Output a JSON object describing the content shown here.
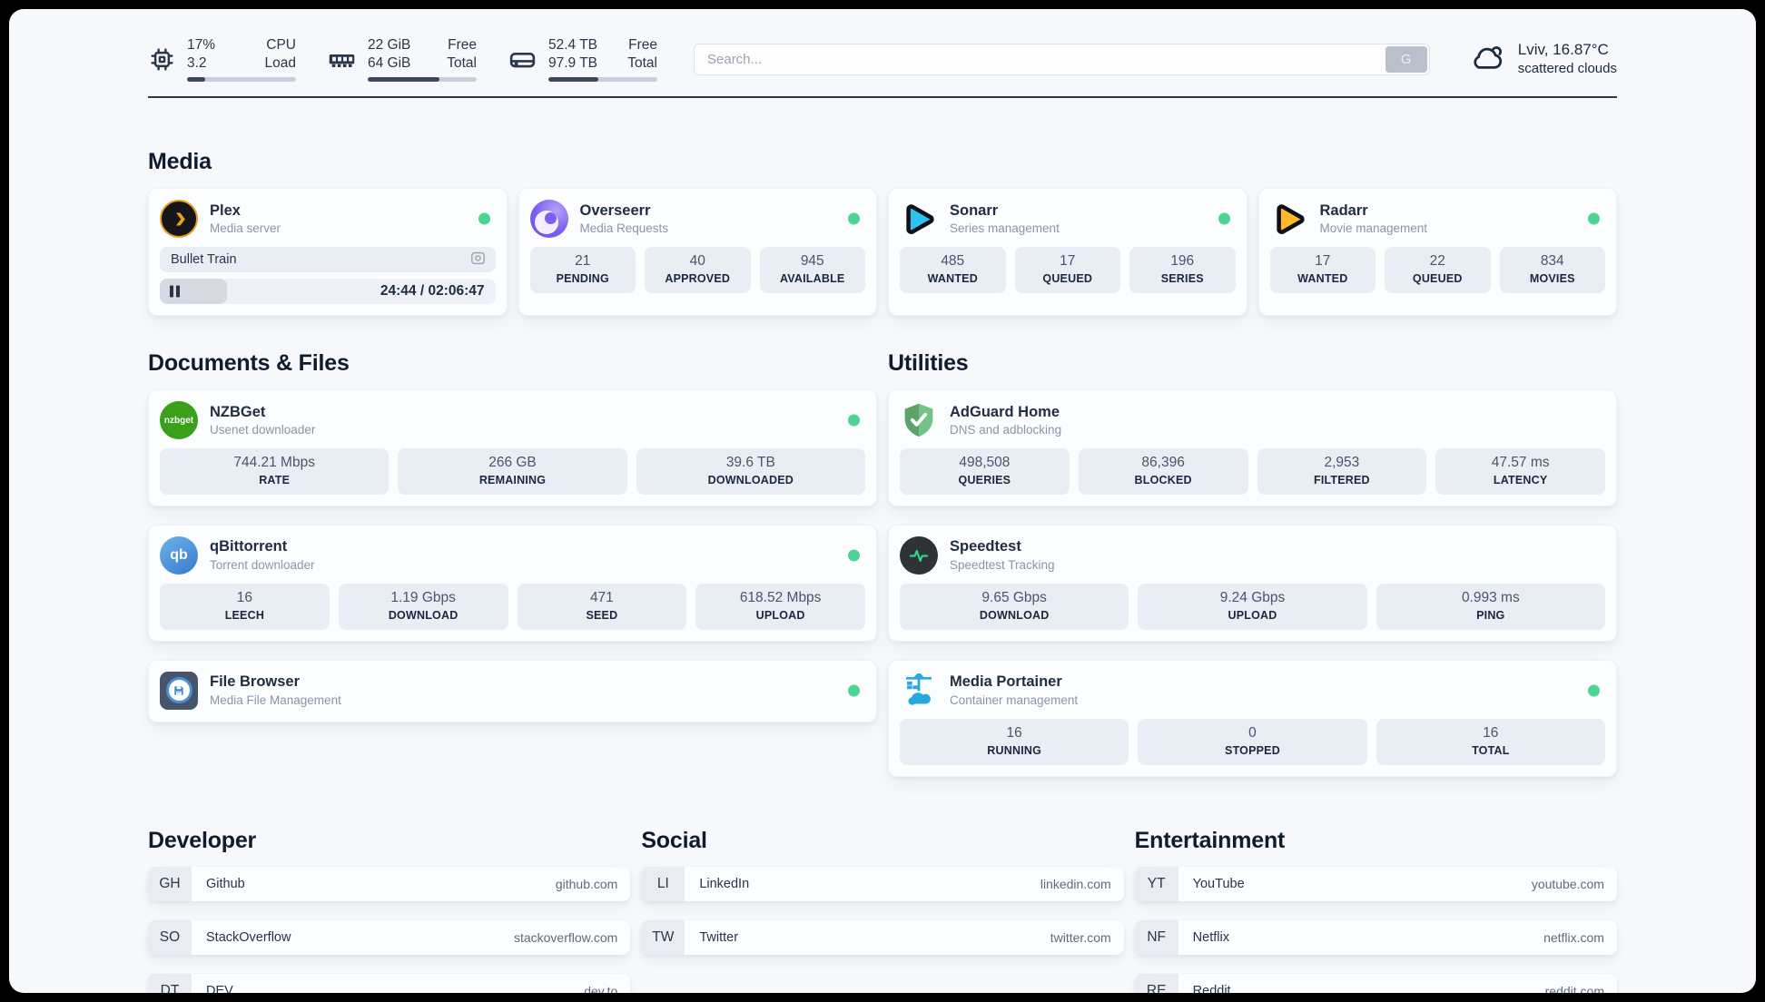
{
  "colors": {
    "status_online": "#4ed492",
    "accent_dark": "#2b3648",
    "page_bg": "#f6f8fb"
  },
  "header": {
    "cpu": {
      "value1": "17%",
      "value2": "3.2",
      "label1": "CPU",
      "label2": "Load",
      "progress": 17
    },
    "memory": {
      "value1": "22 GiB",
      "value2": "64 GiB",
      "label1": "Free",
      "label2": "Total",
      "progress": 66
    },
    "disk": {
      "value1": "52.4 TB",
      "value2": "97.9 TB",
      "label1": "Free",
      "label2": "Total",
      "progress": 46
    },
    "search": {
      "placeholder": "Search...",
      "button": "G"
    },
    "weather": {
      "title": "Lviv, 16.87°C",
      "subtitle": "scattered clouds"
    }
  },
  "sections": {
    "media": "Media",
    "documents": "Documents & Files",
    "utilities": "Utilities",
    "developer": "Developer",
    "social": "Social",
    "entertainment": "Entertainment"
  },
  "apps": {
    "plex": {
      "name": "Plex",
      "desc": "Media server",
      "now_playing": "Bullet Train",
      "time": "24:44 / 02:06:47",
      "progress": 20
    },
    "overseerr": {
      "name": "Overseerr",
      "desc": "Media Requests",
      "stats": [
        {
          "value": "21",
          "label": "PENDING"
        },
        {
          "value": "40",
          "label": "APPROVED"
        },
        {
          "value": "945",
          "label": "AVAILABLE"
        }
      ]
    },
    "sonarr": {
      "name": "Sonarr",
      "desc": "Series management",
      "stats": [
        {
          "value": "485",
          "label": "WANTED"
        },
        {
          "value": "17",
          "label": "QUEUED"
        },
        {
          "value": "196",
          "label": "SERIES"
        }
      ]
    },
    "radarr": {
      "name": "Radarr",
      "desc": "Movie management",
      "stats": [
        {
          "value": "17",
          "label": "WANTED"
        },
        {
          "value": "22",
          "label": "QUEUED"
        },
        {
          "value": "834",
          "label": "MOVIES"
        }
      ]
    },
    "nzbget": {
      "name": "NZBGet",
      "desc": "Usenet downloader",
      "icon_text": "nzbget",
      "stats": [
        {
          "value": "744.21 Mbps",
          "label": "RATE"
        },
        {
          "value": "266 GB",
          "label": "REMAINING"
        },
        {
          "value": "39.6 TB",
          "label": "DOWNLOADED"
        }
      ]
    },
    "qbittorrent": {
      "name": "qBittorrent",
      "desc": "Torrent downloader",
      "icon_text": "qb",
      "stats": [
        {
          "value": "16",
          "label": "LEECH"
        },
        {
          "value": "1.19 Gbps",
          "label": "DOWNLOAD"
        },
        {
          "value": "471",
          "label": "SEED"
        },
        {
          "value": "618.52 Mbps",
          "label": "UPLOAD"
        }
      ]
    },
    "filebrowser": {
      "name": "File Browser",
      "desc": "Media File Management"
    },
    "adguard": {
      "name": "AdGuard Home",
      "desc": "DNS and adblocking",
      "stats": [
        {
          "value": "498,508",
          "label": "QUERIES"
        },
        {
          "value": "86,396",
          "label": "BLOCKED"
        },
        {
          "value": "2,953",
          "label": "FILTERED"
        },
        {
          "value": "47.57 ms",
          "label": "LATENCY"
        }
      ]
    },
    "speedtest": {
      "name": "Speedtest",
      "desc": "Speedtest Tracking",
      "stats": [
        {
          "value": "9.65 Gbps",
          "label": "DOWNLOAD"
        },
        {
          "value": "9.24 Gbps",
          "label": "UPLOAD"
        },
        {
          "value": "0.993 ms",
          "label": "PING"
        }
      ]
    },
    "portainer": {
      "name": "Media Portainer",
      "desc": "Container management",
      "stats": [
        {
          "value": "16",
          "label": "RUNNING"
        },
        {
          "value": "0",
          "label": "STOPPED"
        },
        {
          "value": "16",
          "label": "TOTAL"
        }
      ]
    }
  },
  "bookmarks": {
    "developer": [
      {
        "abbr": "GH",
        "name": "Github",
        "url": "github.com"
      },
      {
        "abbr": "SO",
        "name": "StackOverflow",
        "url": "stackoverflow.com"
      },
      {
        "abbr": "DT",
        "name": "DEV",
        "url": "dev.to"
      }
    ],
    "social": [
      {
        "abbr": "LI",
        "name": "LinkedIn",
        "url": "linkedin.com"
      },
      {
        "abbr": "TW",
        "name": "Twitter",
        "url": "twitter.com"
      }
    ],
    "entertainment": [
      {
        "abbr": "YT",
        "name": "YouTube",
        "url": "youtube.com"
      },
      {
        "abbr": "NF",
        "name": "Netflix",
        "url": "netflix.com"
      },
      {
        "abbr": "RE",
        "name": "Reddit",
        "url": "reddit.com"
      }
    ]
  }
}
